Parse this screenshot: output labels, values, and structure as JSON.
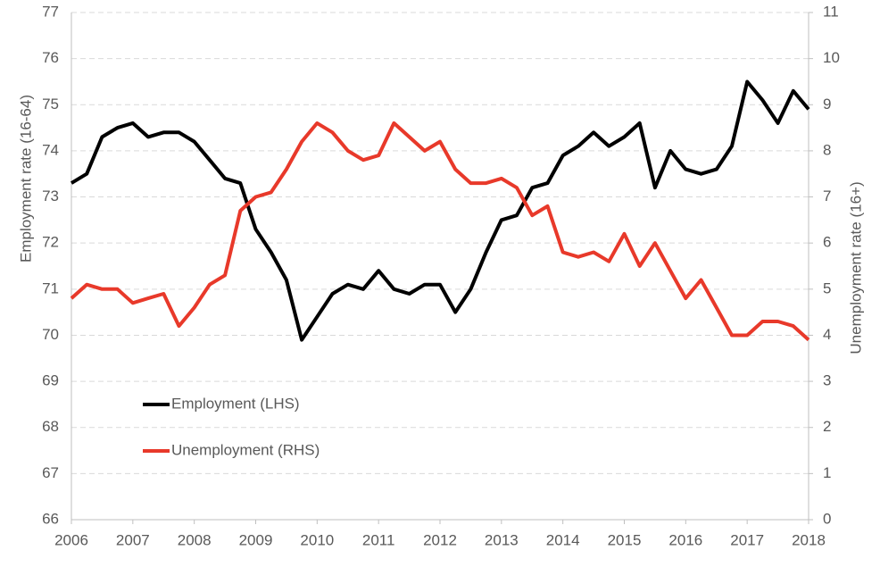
{
  "chart_data": {
    "type": "line",
    "y_label": "Employment rate (16-64)",
    "y2_label": "Unemployment rate (16+)",
    "x": [
      2006,
      2006.25,
      2006.5,
      2006.75,
      2007,
      2007.25,
      2007.5,
      2007.75,
      2008,
      2008.25,
      2008.5,
      2008.75,
      2009,
      2009.25,
      2009.5,
      2009.75,
      2010,
      2010.25,
      2010.5,
      2010.75,
      2011,
      2011.25,
      2011.5,
      2011.75,
      2012,
      2012.25,
      2012.5,
      2012.75,
      2013,
      2013.25,
      2013.5,
      2013.75,
      2014,
      2014.25,
      2014.5,
      2014.75,
      2015,
      2015.25,
      2015.5,
      2015.75,
      2016,
      2016.25,
      2016.5,
      2016.75,
      2017,
      2017.25,
      2017.5,
      2017.75,
      2018
    ],
    "series": [
      {
        "name": "Employment (LHS)",
        "color": "#000000",
        "axis": "y",
        "values": [
          73.3,
          73.5,
          74.3,
          74.5,
          74.6,
          74.3,
          74.4,
          74.4,
          74.2,
          73.8,
          73.4,
          73.3,
          72.3,
          71.8,
          71.2,
          69.9,
          70.4,
          70.9,
          71.1,
          71.0,
          71.4,
          71.0,
          70.9,
          71.1,
          71.1,
          70.5,
          71.0,
          71.8,
          72.5,
          72.6,
          73.2,
          73.3,
          73.9,
          74.1,
          74.4,
          74.1,
          74.3,
          74.6,
          73.2,
          74.0,
          73.6,
          73.5,
          73.6,
          74.1,
          75.5,
          75.1,
          74.6,
          75.3,
          74.9
        ]
      },
      {
        "name": "Unemployment (RHS)",
        "color": "#e8392a",
        "axis": "y2",
        "values": [
          4.8,
          5.1,
          5.0,
          5.0,
          4.7,
          4.8,
          4.9,
          4.2,
          4.6,
          5.1,
          5.3,
          6.7,
          7.0,
          7.1,
          7.6,
          8.2,
          8.6,
          8.4,
          8.0,
          7.8,
          7.9,
          8.6,
          8.3,
          8.0,
          8.2,
          7.6,
          7.3,
          7.3,
          7.4,
          7.2,
          6.6,
          6.8,
          5.8,
          5.7,
          5.8,
          5.6,
          6.2,
          5.5,
          6.0,
          5.4,
          4.8,
          5.2,
          4.6,
          4.0,
          4.0,
          4.3,
          4.3,
          4.2,
          3.9
        ]
      }
    ],
    "xlim": [
      2006,
      2018
    ],
    "xticks": [
      2006,
      2007,
      2008,
      2009,
      2010,
      2011,
      2012,
      2013,
      2014,
      2015,
      2016,
      2017,
      2018
    ],
    "ylim": [
      66,
      77
    ],
    "yticks": [
      66,
      67,
      68,
      69,
      70,
      71,
      72,
      73,
      74,
      75,
      76,
      77
    ],
    "y2lim": [
      0,
      11
    ],
    "y2ticks": [
      0,
      1,
      2,
      3,
      4,
      5,
      6,
      7,
      8,
      9,
      10,
      11
    ],
    "grid": true
  }
}
